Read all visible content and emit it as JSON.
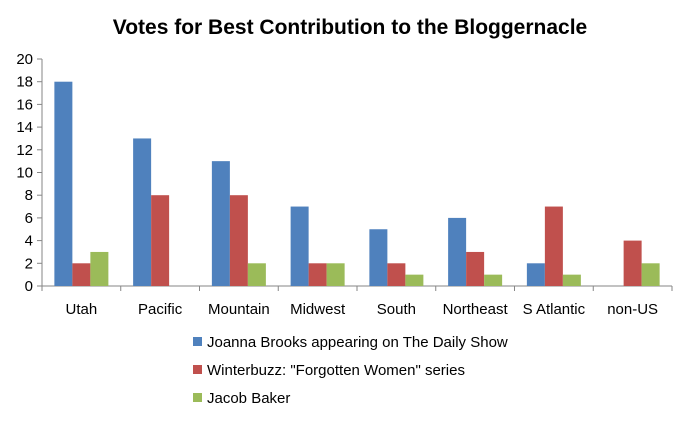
{
  "chart_data": {
    "type": "bar",
    "title": "Votes for Best Contribution to the Bloggernacle",
    "xlabel": "",
    "ylabel": "",
    "ylim": [
      0,
      20
    ],
    "yticks": [
      0,
      2,
      4,
      6,
      8,
      10,
      12,
      14,
      16,
      18,
      20
    ],
    "grid": false,
    "legend_position": "bottom",
    "categories": [
      "Utah",
      "Pacific",
      "Mountain",
      "Midwest",
      "South",
      "Northeast",
      "S Atlantic",
      "non-US"
    ],
    "series": [
      {
        "name": "Joanna Brooks appearing on The Daily Show",
        "color": "#4f81bd",
        "values": [
          18,
          13,
          11,
          7,
          5,
          6,
          2,
          0
        ]
      },
      {
        "name": "Winterbuzz: \"Forgotten Women\" series",
        "color": "#c0504d",
        "values": [
          2,
          8,
          8,
          2,
          2,
          3,
          7,
          4
        ]
      },
      {
        "name": "Jacob Baker",
        "color": "#9bbb59",
        "values": [
          3,
          0,
          2,
          2,
          1,
          1,
          1,
          2
        ]
      }
    ]
  }
}
